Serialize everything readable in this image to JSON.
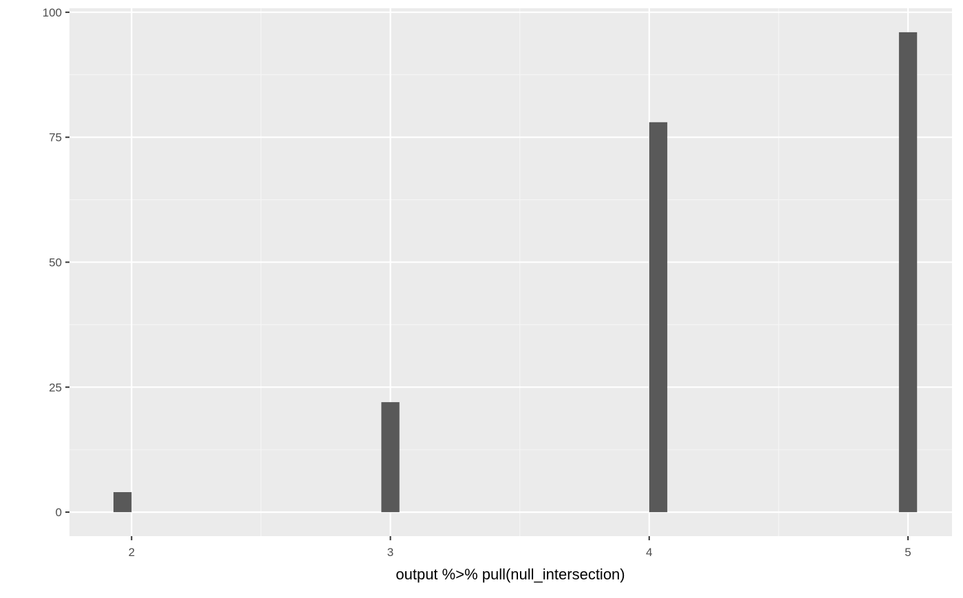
{
  "chart_data": {
    "type": "histogram",
    "title": "",
    "xlabel": "output %>% pull(null_intersection)",
    "ylabel": "",
    "x_ticks": [
      2,
      3,
      4,
      5
    ],
    "y_ticks": [
      0,
      25,
      50,
      75,
      100
    ],
    "xlim": [
      1.76,
      5.17
    ],
    "ylim": [
      -4.8,
      100.8
    ],
    "grid": true,
    "legend": "none",
    "bars": [
      {
        "x": 1.965,
        "x_start": 1.93,
        "x_end": 2.0,
        "y": 4
      },
      {
        "x": 3.0,
        "x_start": 2.965,
        "x_end": 3.035,
        "y": 22
      },
      {
        "x": 4.035,
        "x_start": 4.0,
        "x_end": 4.07,
        "y": 78
      },
      {
        "x": 5.0,
        "x_start": 4.965,
        "x_end": 5.035,
        "y": 96
      }
    ],
    "colors": {
      "panel_background": "#ebebeb",
      "grid_major": "#ffffff",
      "grid_minor": "#f5f5f5",
      "bar_fill": "#595959",
      "tick_mark": "#333333",
      "tick_label": "#4d4d4d"
    }
  }
}
